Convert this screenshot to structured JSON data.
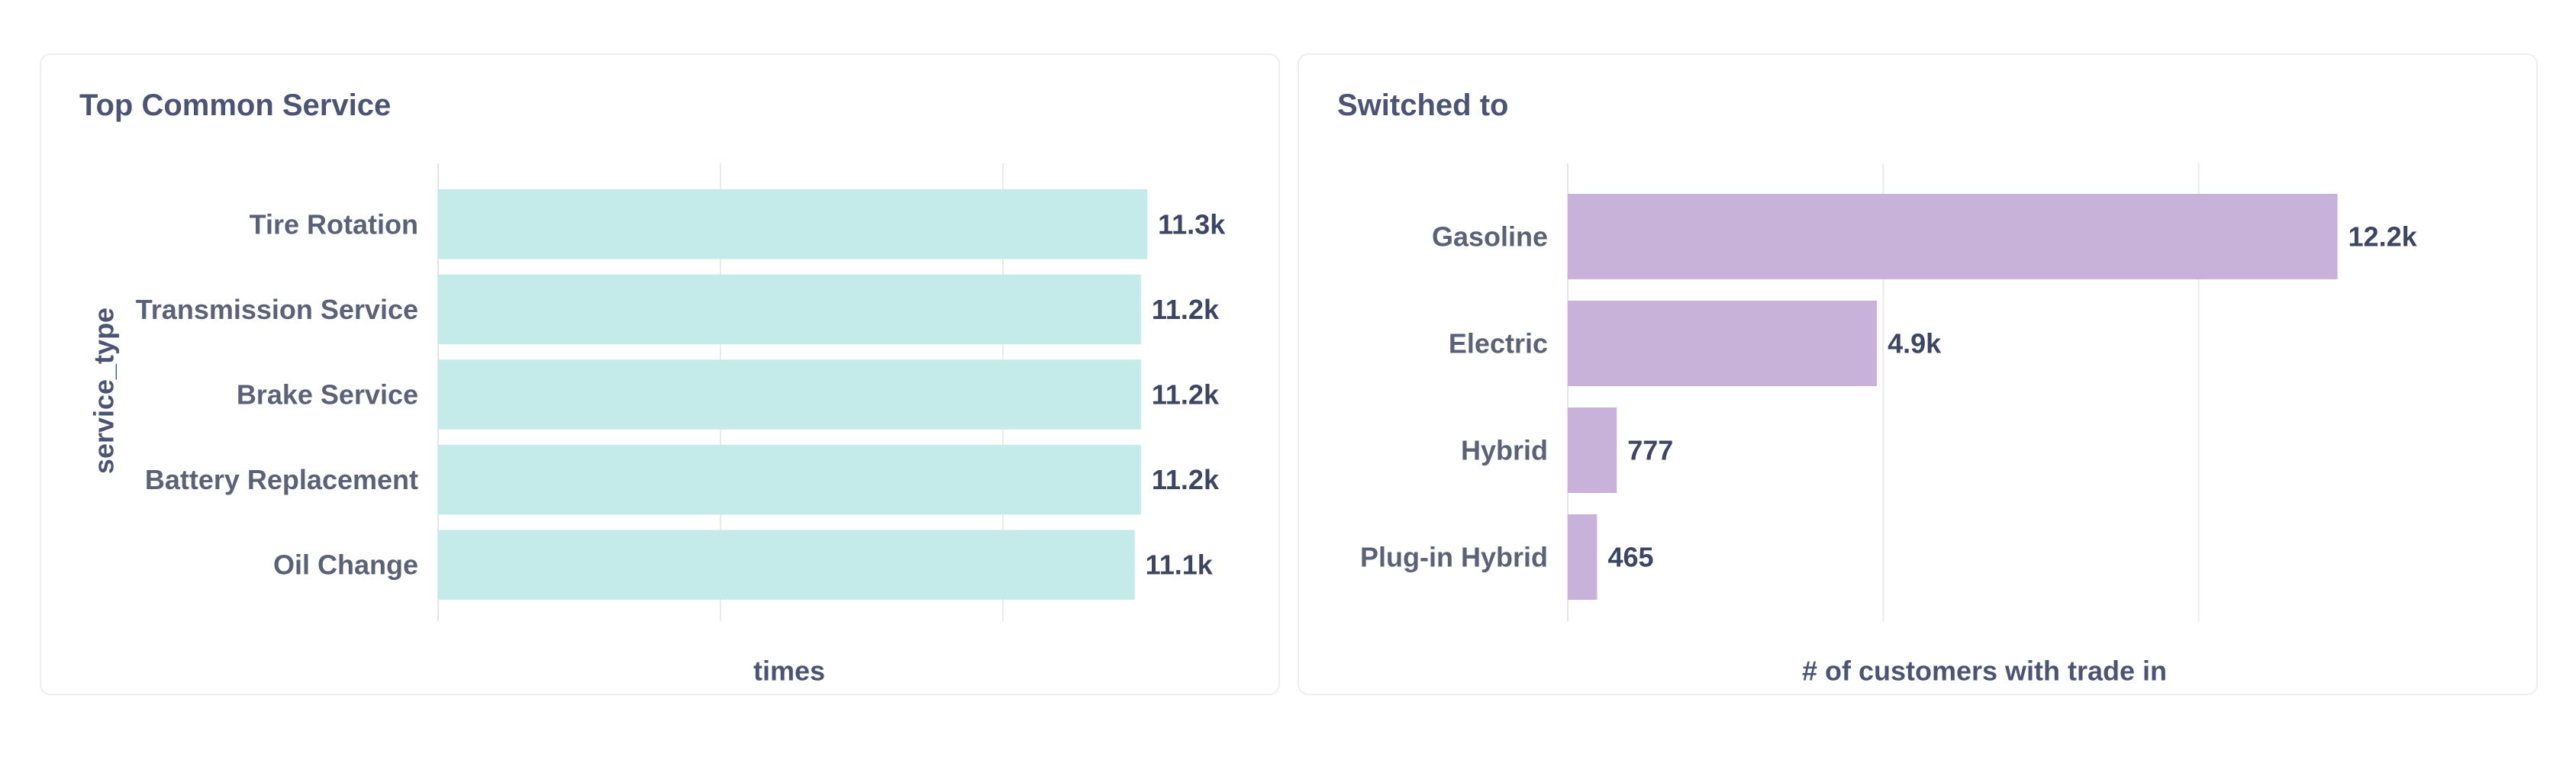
{
  "chart_data": [
    {
      "type": "bar",
      "orientation": "horizontal",
      "title": "Top Common Service",
      "ylabel": "service_type",
      "xlabel": "times",
      "categories": [
        "Tire Rotation",
        "Transmission Service",
        "Brake Service",
        "Battery Replacement",
        "Oil Change"
      ],
      "values": [
        11300,
        11200,
        11200,
        11200,
        11100
      ],
      "value_labels": [
        "11.3k",
        "11.2k",
        "11.2k",
        "11.2k",
        "11.1k"
      ],
      "xlim": [
        0,
        13500
      ],
      "grid": true,
      "color": "#c5eaea"
    },
    {
      "type": "bar",
      "orientation": "horizontal",
      "title": "Switched to",
      "ylabel": "",
      "xlabel": "#  of  customers with trade in",
      "categories": [
        "Gasoline",
        "Electric",
        "Hybrid",
        "Plug-in Hybrid"
      ],
      "values": [
        12200,
        4900,
        777,
        465
      ],
      "value_labels": [
        "12.2k",
        "4.9k",
        "777",
        "465"
      ],
      "xlim": [
        0,
        15000
      ],
      "grid": true,
      "color": "#c8b2da"
    }
  ]
}
